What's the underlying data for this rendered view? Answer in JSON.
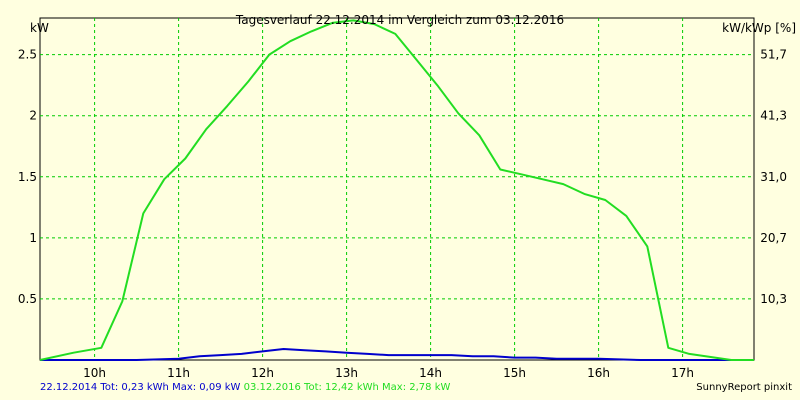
{
  "chart_data": {
    "type": "line",
    "title": "Tagesverlauf 22.12.2014 im Vergleich zum 03.12.2016",
    "ylabel": "kW",
    "ylabel_right": "kW/kWp [%]",
    "xlim": [
      9.35,
      17.85
    ],
    "ylim": [
      0,
      2.8
    ],
    "x_ticks": [
      10,
      11,
      12,
      13,
      14,
      15,
      16,
      17
    ],
    "x_tick_labels": [
      "10h",
      "11h",
      "12h",
      "13h",
      "14h",
      "15h",
      "16h",
      "17h"
    ],
    "y_ticks": [
      0.5,
      1,
      1.5,
      2,
      2.5
    ],
    "y_tick_labels": [
      "0.5",
      "1",
      "1.5",
      "2",
      "2.5"
    ],
    "y2_ticks": [
      0.5,
      1,
      1.5,
      2,
      2.5
    ],
    "y2_tick_labels": [
      "10,3",
      "20,7",
      "31,0",
      "41,3",
      "51,7"
    ],
    "grid": true,
    "series": [
      {
        "name": "22.12.2014",
        "color": "#0000cc",
        "x": [
          9.35,
          10.0,
          10.5,
          11.0,
          11.25,
          11.5,
          11.75,
          12.0,
          12.25,
          12.5,
          12.75,
          13.0,
          13.25,
          13.5,
          13.75,
          14.0,
          14.25,
          14.5,
          14.75,
          15.0,
          15.25,
          15.5,
          16.0,
          16.5,
          17.0,
          17.85
        ],
        "values": [
          0,
          0,
          0,
          0.01,
          0.03,
          0.04,
          0.05,
          0.07,
          0.09,
          0.08,
          0.07,
          0.06,
          0.05,
          0.04,
          0.04,
          0.04,
          0.04,
          0.03,
          0.03,
          0.02,
          0.02,
          0.01,
          0.01,
          0.0,
          0.0,
          0
        ]
      },
      {
        "name": "03.12.2016",
        "color": "#22dd22",
        "x": [
          9.35,
          9.75,
          10.08,
          10.33,
          10.58,
          10.83,
          11.08,
          11.33,
          11.58,
          11.83,
          12.08,
          12.33,
          12.58,
          12.83,
          13.08,
          13.33,
          13.58,
          13.83,
          14.08,
          14.33,
          14.58,
          14.83,
          15.08,
          15.33,
          15.58,
          15.83,
          16.08,
          16.33,
          16.58,
          16.83,
          17.08,
          17.58,
          17.85
        ],
        "values": [
          0,
          0.06,
          0.1,
          0.48,
          1.2,
          1.48,
          1.65,
          1.89,
          2.08,
          2.28,
          2.5,
          2.61,
          2.69,
          2.76,
          2.78,
          2.75,
          2.67,
          2.46,
          2.25,
          2.02,
          1.84,
          1.56,
          1.52,
          1.48,
          1.44,
          1.36,
          1.31,
          1.18,
          0.93,
          0.1,
          0.05,
          0.0,
          0
        ]
      }
    ]
  },
  "footer": {
    "series1": "22.12.2014 Tot: 0,23 kWh Max: 0,09 kW",
    "series2": "03.12.2016 Tot: 12,42 kWh Max: 2,78 kW",
    "credit": "SunnyReport pinxit"
  }
}
